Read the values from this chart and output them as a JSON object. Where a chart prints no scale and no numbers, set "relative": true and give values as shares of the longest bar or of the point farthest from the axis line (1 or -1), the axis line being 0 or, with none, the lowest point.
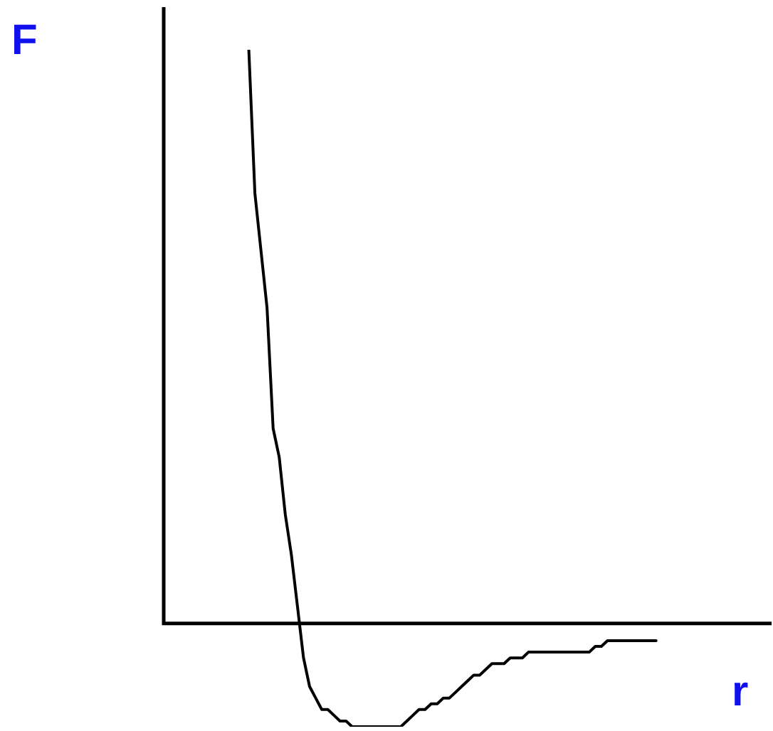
{
  "chart_data": {
    "type": "line",
    "relative": true,
    "xlabel": "r",
    "ylabel": "F",
    "legend": false,
    "marker": "none",
    "line_style": "solid",
    "categories": [
      null,
      null,
      null,
      null,
      null,
      null,
      null,
      null,
      null,
      null,
      null,
      null,
      null,
      null,
      null,
      null,
      null,
      null,
      null,
      null,
      null,
      null,
      null,
      null,
      null,
      null,
      null,
      null,
      null,
      null,
      null,
      null,
      null,
      null,
      null,
      null,
      null,
      null,
      null,
      null,
      null,
      null,
      null,
      null,
      null,
      null,
      null,
      null,
      null,
      null,
      null,
      null,
      null,
      null,
      null,
      null,
      null,
      null,
      null,
      null,
      null,
      null,
      null,
      null,
      null,
      null,
      null,
      null,
      null,
      null,
      null,
      null,
      null,
      null,
      null,
      null,
      null,
      null,
      null,
      null,
      null,
      null,
      null,
      null,
      null,
      null,
      null,
      null,
      null,
      null,
      null,
      null,
      null,
      null,
      null,
      null,
      null,
      null,
      null,
      null,
      null
    ],
    "series": [
      {
        "color": "#000000",
        "values": [
          null,
          null,
          null,
          null,
          null,
          null,
          null,
          null,
          null,
          null,
          null,
          null,
          null,
          null,
          1.0,
          0.75,
          0.65,
          0.55,
          0.34,
          0.29,
          0.19,
          0.12,
          0.03,
          -0.06,
          -0.11,
          -0.13,
          -0.15,
          -0.15,
          -0.16,
          -0.17,
          -0.17,
          -0.18,
          -0.18,
          -0.18,
          -0.18,
          -0.18,
          -0.18,
          -0.18,
          -0.18,
          -0.18,
          -0.17,
          -0.16,
          -0.15,
          -0.15,
          -0.14,
          -0.14,
          -0.13,
          -0.13,
          -0.12,
          -0.11,
          -0.1,
          -0.09,
          -0.09,
          -0.08,
          -0.07,
          -0.07,
          -0.07,
          -0.06,
          -0.06,
          -0.06,
          -0.05,
          -0.05,
          -0.05,
          -0.05,
          -0.05,
          -0.05,
          -0.05,
          -0.05,
          -0.05,
          -0.05,
          -0.05,
          -0.04,
          -0.04,
          -0.03,
          -0.03,
          -0.03,
          -0.03,
          -0.03,
          -0.03,
          -0.03,
          -0.03,
          -0.03,
          null,
          null,
          null,
          null,
          null,
          null,
          null,
          null,
          null,
          null,
          null,
          null,
          null,
          null,
          null,
          null,
          null,
          null,
          null
        ]
      }
    ]
  }
}
